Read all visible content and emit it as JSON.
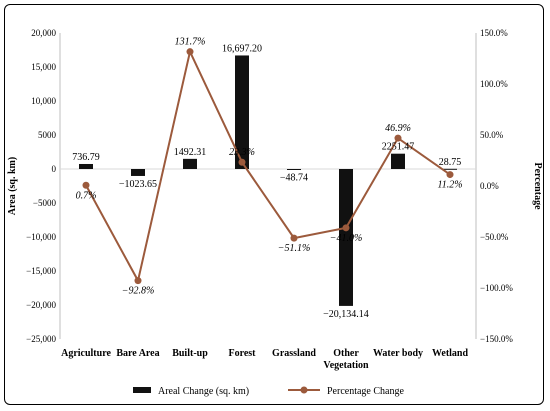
{
  "chart_data": {
    "type": "bar",
    "categories": [
      "Agriculture",
      "Bare Area",
      "Built-up",
      "Forest",
      "Grassland",
      "Other Vegetation",
      "Water body",
      "Wetland"
    ],
    "category_lines": [
      [
        "Agriculture"
      ],
      [
        "Bare Area"
      ],
      [
        "Built-up"
      ],
      [
        "Forest"
      ],
      [
        "Grassland"
      ],
      [
        "Other",
        "Vegetation"
      ],
      [
        "Water body"
      ],
      [
        "Wetland"
      ]
    ],
    "series": [
      {
        "name": "Areal Change (sq. km)",
        "type": "bar",
        "axis": "left",
        "values": [
          736.79,
          -1023.65,
          1492.31,
          16697.2,
          -48.74,
          -20134.14,
          2251.47,
          28.75
        ],
        "labels": [
          "736.79",
          "−1023.65",
          "1492.31",
          "16,697.20",
          "−48.74",
          "−20,134.14",
          "2251.47",
          "28.75"
        ],
        "color": "#111111"
      },
      {
        "name": "Percentage Change",
        "type": "line",
        "axis": "right",
        "values": [
          0.7,
          -92.8,
          131.7,
          23.3,
          -51.1,
          -41.0,
          46.9,
          11.2
        ],
        "labels": [
          "0.7%",
          "−92.8%",
          "131.7%",
          "23.3%",
          "−51.1%",
          "−41.0%",
          "46.9%",
          "11.2%"
        ],
        "color": "#9c5a3c"
      }
    ],
    "ylabel": "Area (sq. km)",
    "y2label": "Percentage",
    "ylim": [
      -25000,
      20000
    ],
    "y2lim": [
      -150,
      150
    ],
    "yticks": [
      "20,000",
      "15,000",
      "10,000",
      "5000",
      "0",
      "−5000",
      "−10,000",
      "−15,000",
      "−20,000",
      "−25,000"
    ],
    "yticks_values": [
      20000,
      15000,
      10000,
      5000,
      0,
      -5000,
      -10000,
      -15000,
      -20000,
      -25000
    ],
    "y2ticks": [
      "150.0%",
      "100.0%",
      "50.0%",
      "0.0%",
      "−50.0%",
      "−100.0%",
      "−150.0%"
    ],
    "y2ticks_values": [
      150,
      100,
      50,
      0,
      -50,
      -100,
      -150
    ],
    "grid": false,
    "legend_position": "bottom"
  }
}
